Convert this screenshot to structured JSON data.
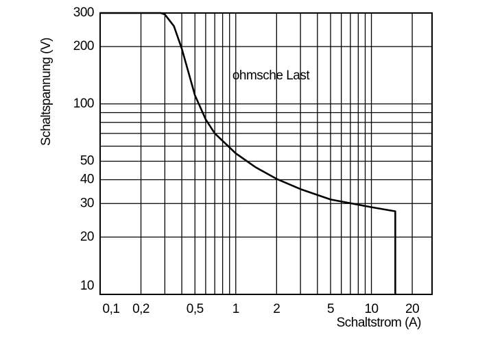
{
  "chart_data": {
    "type": "line",
    "xlabel": "Schaltstrom (A)",
    "ylabel": "Schaltspannung (V)",
    "annotation": "ohmsche Last",
    "log_x": true,
    "log_y": true,
    "grid": true,
    "xlim": [
      0.1,
      28
    ],
    "ylim": [
      10,
      300
    ],
    "xticks": [
      {
        "value": 0.1,
        "label": "0,1"
      },
      {
        "value": 0.2,
        "label": "0,2"
      },
      {
        "value": 0.5,
        "label": "0,5"
      },
      1,
      2,
      5,
      10,
      20
    ],
    "yticks": [
      10,
      20,
      30,
      40,
      50,
      100,
      200,
      300
    ],
    "x_minor_grid": [
      0.3,
      0.4,
      0.6,
      0.7,
      0.8,
      0.9,
      3,
      4,
      6,
      7,
      8,
      9
    ],
    "y_minor_grid": [
      60,
      70,
      80,
      90
    ],
    "series": [
      {
        "color": "#000000",
        "x": [
          0.1,
          0.28,
          0.3,
          0.35,
          0.4,
          0.5,
          0.6,
          0.7,
          1,
          1.4,
          2,
          3,
          5,
          10,
          15,
          15
        ],
        "values": [
          300,
          300,
          295,
          256,
          195,
          111,
          83,
          70,
          55,
          46.5,
          40.4,
          35.7,
          31.5,
          28.7,
          27.3,
          10
        ]
      }
    ]
  }
}
